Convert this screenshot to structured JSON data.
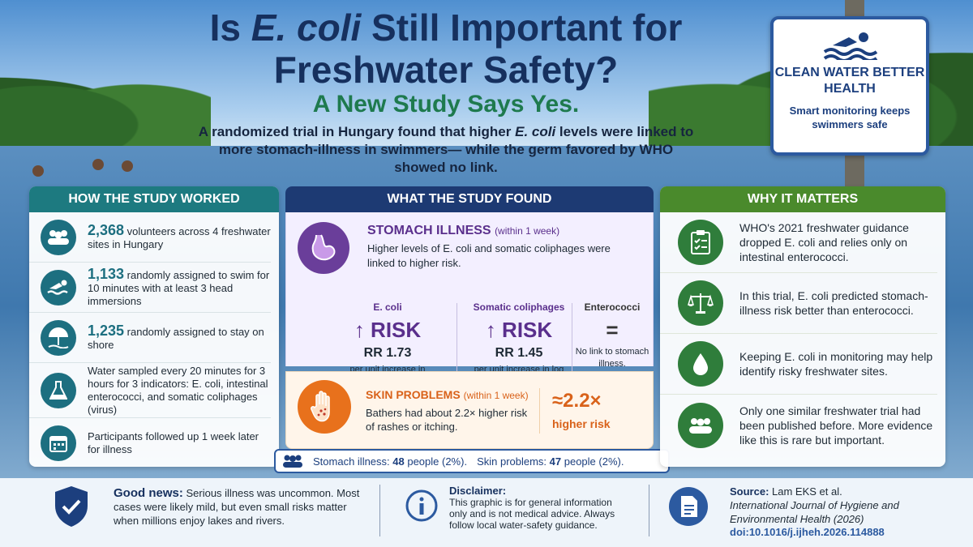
{
  "header": {
    "title_pre": "Is ",
    "title_em": "E. coli",
    "title_post": " Still Important for Freshwater Safety?",
    "subtitle": "A New Study Says Yes.",
    "intro_1": "A randomized trial in Hungary found that higher ",
    "intro_em": "E. coli",
    "intro_2": " levels were linked to more stomach-illness in swimmers— while the germ favored by WHO showed no link."
  },
  "sign": {
    "icon": "swimmer-icon",
    "title": "CLEAN WATER BETTER HEALTH",
    "subtitle": "Smart monitoring keeps swimmers safe"
  },
  "how": {
    "heading": "HOW THE STUDY WORKED",
    "items": [
      {
        "icon": "people-icon",
        "big": "2,368",
        "text": " volunteers across 4 freshwater sites in Hungary"
      },
      {
        "icon": "swim-icon",
        "big": "1,133",
        "text": " randomly assigned to swim for 10 minutes with at least 3 head immersions"
      },
      {
        "icon": "umbrella-icon",
        "big": "1,235",
        "text": " randomly assigned to stay on shore"
      },
      {
        "icon": "flask-icon",
        "big": "",
        "text": "Water sampled every 20 minutes for 3 hours for 3 indicators: E. coli, intestinal enterococci, and somatic coliphages (virus)"
      },
      {
        "icon": "calendar-icon",
        "big": "",
        "text": "Participants followed up 1 week later for illness"
      }
    ]
  },
  "found": {
    "heading": "WHAT THE STUDY FOUND",
    "stomach": {
      "title": "STOMACH ILLNESS",
      "window": "(within 1 week)",
      "desc": "Higher levels of E. coli and somatic coliphages were linked to higher risk."
    },
    "columns": [
      {
        "head": "E. coli",
        "risk": "↑ RISK",
        "rr": "RR 1.73",
        "unit": "per unit increase in log E. coli"
      },
      {
        "head": "Somatic coliphages",
        "risk": "↑ RISK",
        "rr": "RR 1.45",
        "unit": "per unit increase in log coliphages"
      },
      {
        "head": "Enterococci",
        "risk": "=",
        "rr": "",
        "unit": "No link to stomach illness."
      }
    ],
    "skin": {
      "title": "SKIN PROBLEMS",
      "window": "(within 1 week)",
      "desc": "Bathers had about 2.2× higher risk of rashes or itching.",
      "big": "≈2.2×",
      "sub": "higher risk"
    },
    "counts": {
      "icon": "people-icon",
      "stomach_label": "Stomach illness: ",
      "stomach_value": "48",
      "stomach_rest": " people (2%).",
      "skin_label": "Skin problems: ",
      "skin_value": "47",
      "skin_rest": " people (2%)."
    }
  },
  "why": {
    "heading": "WHY IT MATTERS",
    "items": [
      {
        "icon": "clipboard-icon",
        "text": "WHO's 2021 freshwater guidance dropped E. coli and relies only on intestinal enterococci."
      },
      {
        "icon": "scales-icon",
        "text": "In this trial, E. coli predicted stomach-illness risk better than enterococci."
      },
      {
        "icon": "drop-icon",
        "text": "Keeping E. coli in monitoring may help identify risky freshwater sites."
      },
      {
        "icon": "people-icon",
        "text": "Only one similar freshwater trial had been published before. More evidence like this is rare but important."
      }
    ]
  },
  "footer": {
    "good_head": "Good news:",
    "good_text": "Serious illness was uncommon. Most cases were likely mild, but even small risks matter when millions enjoy lakes and rivers.",
    "disc_head": "Disclaimer:",
    "disc_text": "This graphic is for general information only and is not medical advice. Always follow local water-safety guidance.",
    "src_head": "Source:",
    "src_authors": "Lam EKS et al.",
    "src_journal": "International Journal of Hygiene and Environmental Health (2026)",
    "src_doi": "doi:10.1016/j.ijheh.2026.114888"
  },
  "colors": {
    "navy": "#16305e",
    "teal": "#1d7a80",
    "purple": "#5a2f8c",
    "orange": "#d9621a",
    "green": "#4a8a2c"
  }
}
